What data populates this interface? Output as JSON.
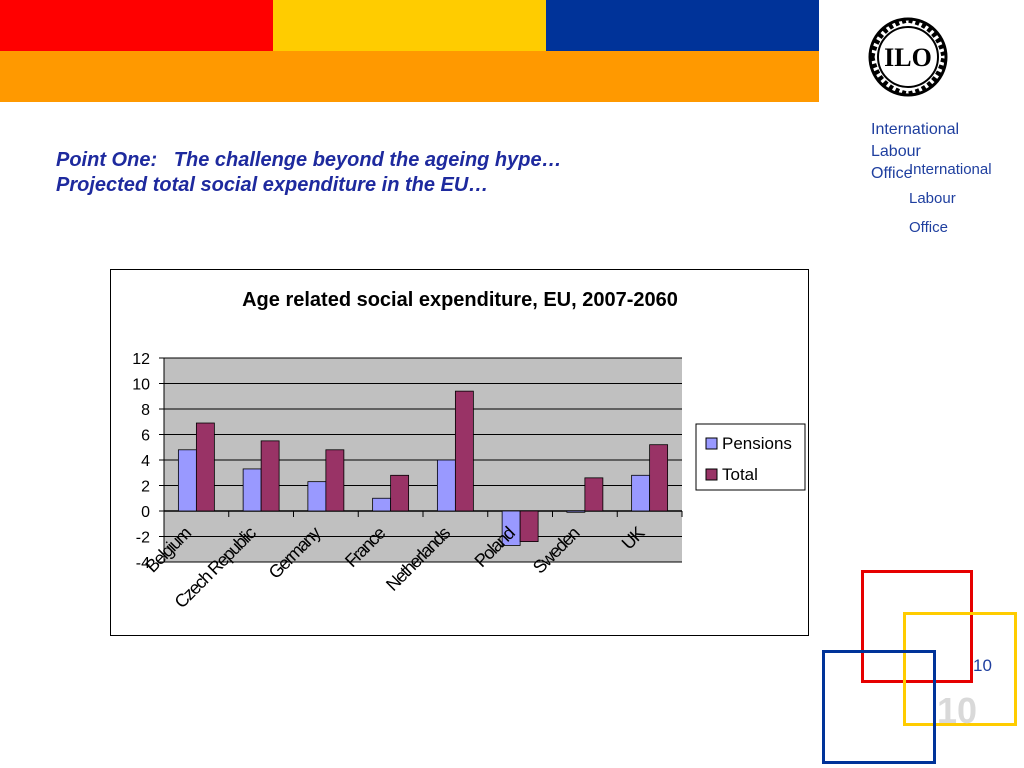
{
  "header": {
    "colors": {
      "red": "#ff0000",
      "yellow": "#ffcc00",
      "blue": "#003399",
      "orange": "#ff9900"
    }
  },
  "logo": {
    "name": "ilo-logo-icon",
    "text": "ILO"
  },
  "organization": {
    "line1": "International",
    "line2": "Labour",
    "line3": "Office"
  },
  "organization_repeat": {
    "line1": "International",
    "line2": "Labour",
    "line3": "Office"
  },
  "headline": {
    "line1": "Point One:   The challenge beyond the ageing hype…",
    "line2": "Projected total social expenditure in the EU…"
  },
  "chart_data": {
    "type": "bar",
    "title": "Age related social expenditure, EU, 2007-2060",
    "categories": [
      "Belgium",
      "Czech Republic",
      "Germany",
      "France",
      "Netherlands",
      "Poland",
      "Sweden",
      "UK"
    ],
    "series": [
      {
        "name": "Pensions",
        "color": "#9999ff",
        "values": [
          4.8,
          3.3,
          2.3,
          1.0,
          4.0,
          -2.7,
          -0.1,
          2.8
        ]
      },
      {
        "name": "Total",
        "color": "#993366",
        "values": [
          6.9,
          5.5,
          4.8,
          2.8,
          9.4,
          -2.4,
          2.6,
          5.2
        ]
      }
    ],
    "ylim": [
      -4,
      12
    ],
    "yticks": [
      12,
      10,
      8,
      6,
      4,
      2,
      0,
      -2,
      -4
    ],
    "xlabel": "",
    "ylabel": "",
    "grid": true,
    "legend": "right"
  },
  "page": {
    "number": "10",
    "number_large": "10"
  }
}
